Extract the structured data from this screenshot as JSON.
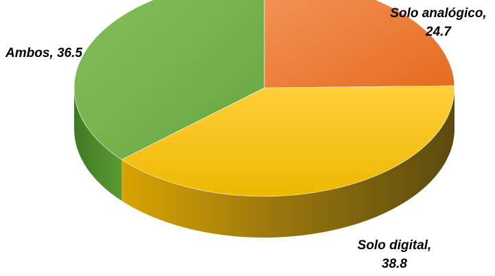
{
  "chart_data": {
    "type": "pie",
    "style": "3d",
    "slices": [
      {
        "label": "Solo analógico",
        "value": 24.7,
        "color": "#ED7D31"
      },
      {
        "label": "Solo digital",
        "value": 38.8,
        "color": "#FFC000"
      },
      {
        "label": "Ambos",
        "value": 36.5,
        "color": "#70AD47"
      }
    ],
    "data_labels": {
      "analogico": {
        "line1": "Solo analógico,",
        "line2": "24.7"
      },
      "ambos": {
        "line1": "Ambos, 36.5"
      },
      "digital": {
        "line1": "Solo digital,",
        "line2": "38.8"
      }
    }
  }
}
